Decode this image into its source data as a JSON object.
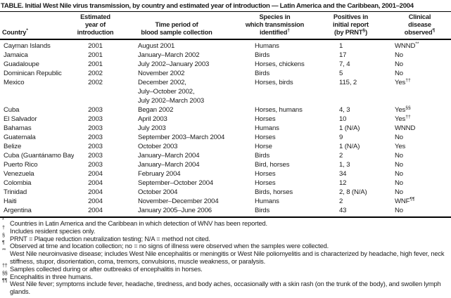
{
  "title": "TABLE. Initial West Nile virus transmission, by country and estimated year of introduction — Latin America and the Caribbean, 2001–2004",
  "table": {
    "headers": [
      {
        "lines": [
          "Country"
        ],
        "sup": "*"
      },
      {
        "lines": [
          "Estimated",
          "year of",
          "introduction"
        ]
      },
      {
        "lines": [
          "Time period of",
          "blood sample collection"
        ]
      },
      {
        "lines": [
          "Species in",
          "which transmission",
          "identified"
        ],
        "sup": "†"
      },
      {
        "lines": [
          "Positives in",
          "initial report",
          "(by PRNT"
        ],
        "sup": "§",
        "post": ")"
      },
      {
        "lines": [
          "Clinical",
          "disease",
          "observed"
        ],
        "sup": "¶"
      }
    ],
    "rows": [
      {
        "country": "Cayman Islands",
        "year": "2001",
        "period": [
          "August 2001"
        ],
        "species": "Humans",
        "positives": "1",
        "clinical": "WNND",
        "clinical_sup": "**"
      },
      {
        "country": "Jamaica",
        "year": "2001",
        "period": [
          "January–March 2002"
        ],
        "species": "Birds",
        "positives": "17",
        "clinical": "No"
      },
      {
        "country": "Guadaloupe",
        "year": "2001",
        "period": [
          "July 2002–January 2003"
        ],
        "species": "Horses, chickens",
        "positives": "7, 4",
        "clinical": "No"
      },
      {
        "country": "Dominican Republic",
        "year": "2002",
        "period": [
          "November 2002"
        ],
        "species": "Birds",
        "positives": "5",
        "clinical": "No"
      },
      {
        "country": "Mexico",
        "year": "2002",
        "period": [
          "December 2002,",
          "July–October 2002,",
          "July 2002–March 2003"
        ],
        "species": "Horses, birds",
        "positives": "115, 2",
        "clinical": "Yes",
        "clinical_sup": "††"
      },
      {
        "country": "Cuba",
        "year": "2003",
        "period": [
          "Began 2002"
        ],
        "species": "Horses, humans",
        "positives": "4, 3",
        "clinical": "Yes",
        "clinical_sup": "§§"
      },
      {
        "country": "El Salvador",
        "year": "2003",
        "period": [
          "April 2003"
        ],
        "species": "Horses",
        "positives": "10",
        "clinical": "Yes",
        "clinical_sup": "††"
      },
      {
        "country": "Bahamas",
        "year": "2003",
        "period": [
          "July 2003"
        ],
        "species": "Humans",
        "positives": "1 (N/A)",
        "clinical": "WNND"
      },
      {
        "country": "Guatemala",
        "year": "2003",
        "period": [
          "September 2003–March 2004"
        ],
        "species": "Horses",
        "positives": "9",
        "clinical": "No"
      },
      {
        "country": "Belize",
        "year": "2003",
        "period": [
          "October 2003"
        ],
        "species": "Horse",
        "positives": "1 (N/A)",
        "clinical": "Yes"
      },
      {
        "country": "Cuba (Guantánamo Bay)",
        "year": "2003",
        "period": [
          "January–March 2004"
        ],
        "species": "Birds",
        "positives": "2",
        "clinical": "No"
      },
      {
        "country": "Puerto Rico",
        "year": "2003",
        "period": [
          "January–March 2004"
        ],
        "species": "Bird, horses",
        "positives": "1, 3",
        "clinical": "No"
      },
      {
        "country": "Venezuela",
        "year": "2004",
        "period": [
          "February 2004"
        ],
        "species": "Horses",
        "positives": "34",
        "clinical": "No"
      },
      {
        "country": "Colombia",
        "year": "2004",
        "period": [
          "September–October 2004"
        ],
        "species": "Horses",
        "positives": "12",
        "clinical": "No"
      },
      {
        "country": "Trinidad",
        "year": "2004",
        "period": [
          "October 2004"
        ],
        "species": "Birds, horses",
        "positives": "2, 8 (N/A)",
        "clinical": "No"
      },
      {
        "country": "Haiti",
        "year": "2004",
        "period": [
          "November–December 2004"
        ],
        "species": "Humans",
        "positives": "2",
        "clinical": "WNF",
        "clinical_sup": "¶¶"
      },
      {
        "country": "Argentina",
        "year": "2004",
        "period": [
          "January 2005–June 2006"
        ],
        "species": "Birds",
        "positives": "43",
        "clinical": "No"
      }
    ]
  },
  "footnotes": [
    {
      "mark": "*",
      "text": "Countries in Latin America and the Caribbean in which detection of WNV has been reported."
    },
    {
      "mark": "†",
      "text": "Includes resident species only."
    },
    {
      "mark": "§",
      "text": "PRNT = Plaque reduction neutralization testing; N/A = method not cited."
    },
    {
      "mark": "¶",
      "text": "Observed at time and location collection; no = no signs of illness were observed when the samples were collected."
    },
    {
      "mark": "**",
      "text": "West Nile neuroinvasive disease; includes West Nile encephalitis or meningitis or West Nile poliomyelitis and is characterized by headache, high fever, neck stiffness, stupor, disorientation, coma, tremors, convulsions, muscle weakness, or paralysis."
    },
    {
      "mark": "††",
      "text": "Samples collected during or after outbreaks of encephalitis in horses."
    },
    {
      "mark": "§§",
      "text": "Encephalitis in three humans."
    },
    {
      "mark": "¶¶",
      "text": "West Nile fever; symptoms include fever, headache, tiredness, and body aches, occasionally with a skin rash (on the trunk of the body), and swollen lymph glands."
    }
  ],
  "colors": {
    "text": "#1b1b1b",
    "rule": "#000000",
    "background": "#ffffff"
  }
}
